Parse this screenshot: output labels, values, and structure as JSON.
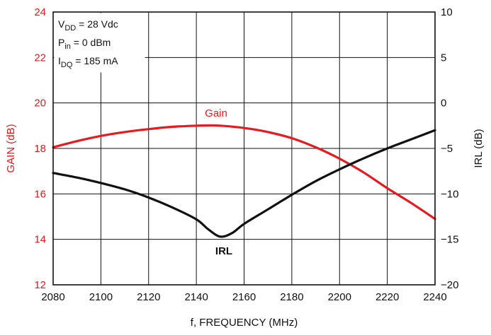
{
  "chart_data": {
    "type": "line",
    "x": [
      2080,
      2090,
      2100,
      2110,
      2120,
      2130,
      2140,
      2145,
      2150,
      2160,
      2170,
      2180,
      2190,
      2200,
      2210,
      2220,
      2230,
      2240
    ],
    "xlabel": "f, FREQUENCY (MHz)",
    "xlim": [
      2080,
      2240
    ],
    "x_ticks": [
      "2080",
      "2100",
      "2120",
      "2140",
      "2160",
      "2180",
      "2200",
      "2220",
      "2240"
    ],
    "y_left": {
      "label": "GAIN (dB)",
      "lim": [
        12,
        24
      ],
      "ticks": [
        "12",
        "14",
        "16",
        "18",
        "20",
        "22",
        "24"
      ],
      "color": "#e8191f"
    },
    "y_right": {
      "label": "IRL (dB)",
      "lim": [
        -20,
        10
      ],
      "ticks": [
        "−20",
        "−15",
        "−10",
        "−5",
        "0",
        "5",
        "10"
      ],
      "color": "#111111"
    },
    "series": [
      {
        "name": "Gain",
        "axis": "left",
        "color": "#e8191f",
        "x": [
          2080,
          2090,
          2100,
          2110,
          2120,
          2130,
          2140,
          2145,
          2150,
          2160,
          2170,
          2180,
          2190,
          2200,
          2210,
          2220,
          2230,
          2240
        ],
        "values": [
          18.05,
          18.32,
          18.55,
          18.72,
          18.85,
          18.95,
          19.0,
          19.01,
          19.0,
          18.9,
          18.72,
          18.45,
          18.05,
          17.55,
          16.95,
          16.25,
          15.6,
          14.9
        ]
      },
      {
        "name": "IRL",
        "axis": "right",
        "color": "#111111",
        "x": [
          2080,
          2090,
          2100,
          2110,
          2120,
          2130,
          2140,
          2145,
          2150,
          2155,
          2160,
          2170,
          2180,
          2190,
          2200,
          2210,
          2220,
          2230,
          2240
        ],
        "values": [
          -7.7,
          -8.2,
          -8.8,
          -9.5,
          -10.4,
          -11.5,
          -12.8,
          -13.9,
          -14.7,
          -14.3,
          -13.3,
          -11.7,
          -10.1,
          -8.6,
          -7.3,
          -6.1,
          -5.0,
          -4.0,
          -3.0
        ]
      }
    ],
    "grid": true,
    "annotations": {
      "conditions": [
        {
          "main": "V",
          "sub": "DD",
          "rest": " = 28 Vdc"
        },
        {
          "main": "P",
          "sub": "in",
          "rest": " = 0 dBm"
        },
        {
          "main": "I",
          "sub": "DQ",
          "rest": " = 185 mA"
        }
      ],
      "gain_label": "Gain",
      "irl_label": "IRL"
    }
  }
}
